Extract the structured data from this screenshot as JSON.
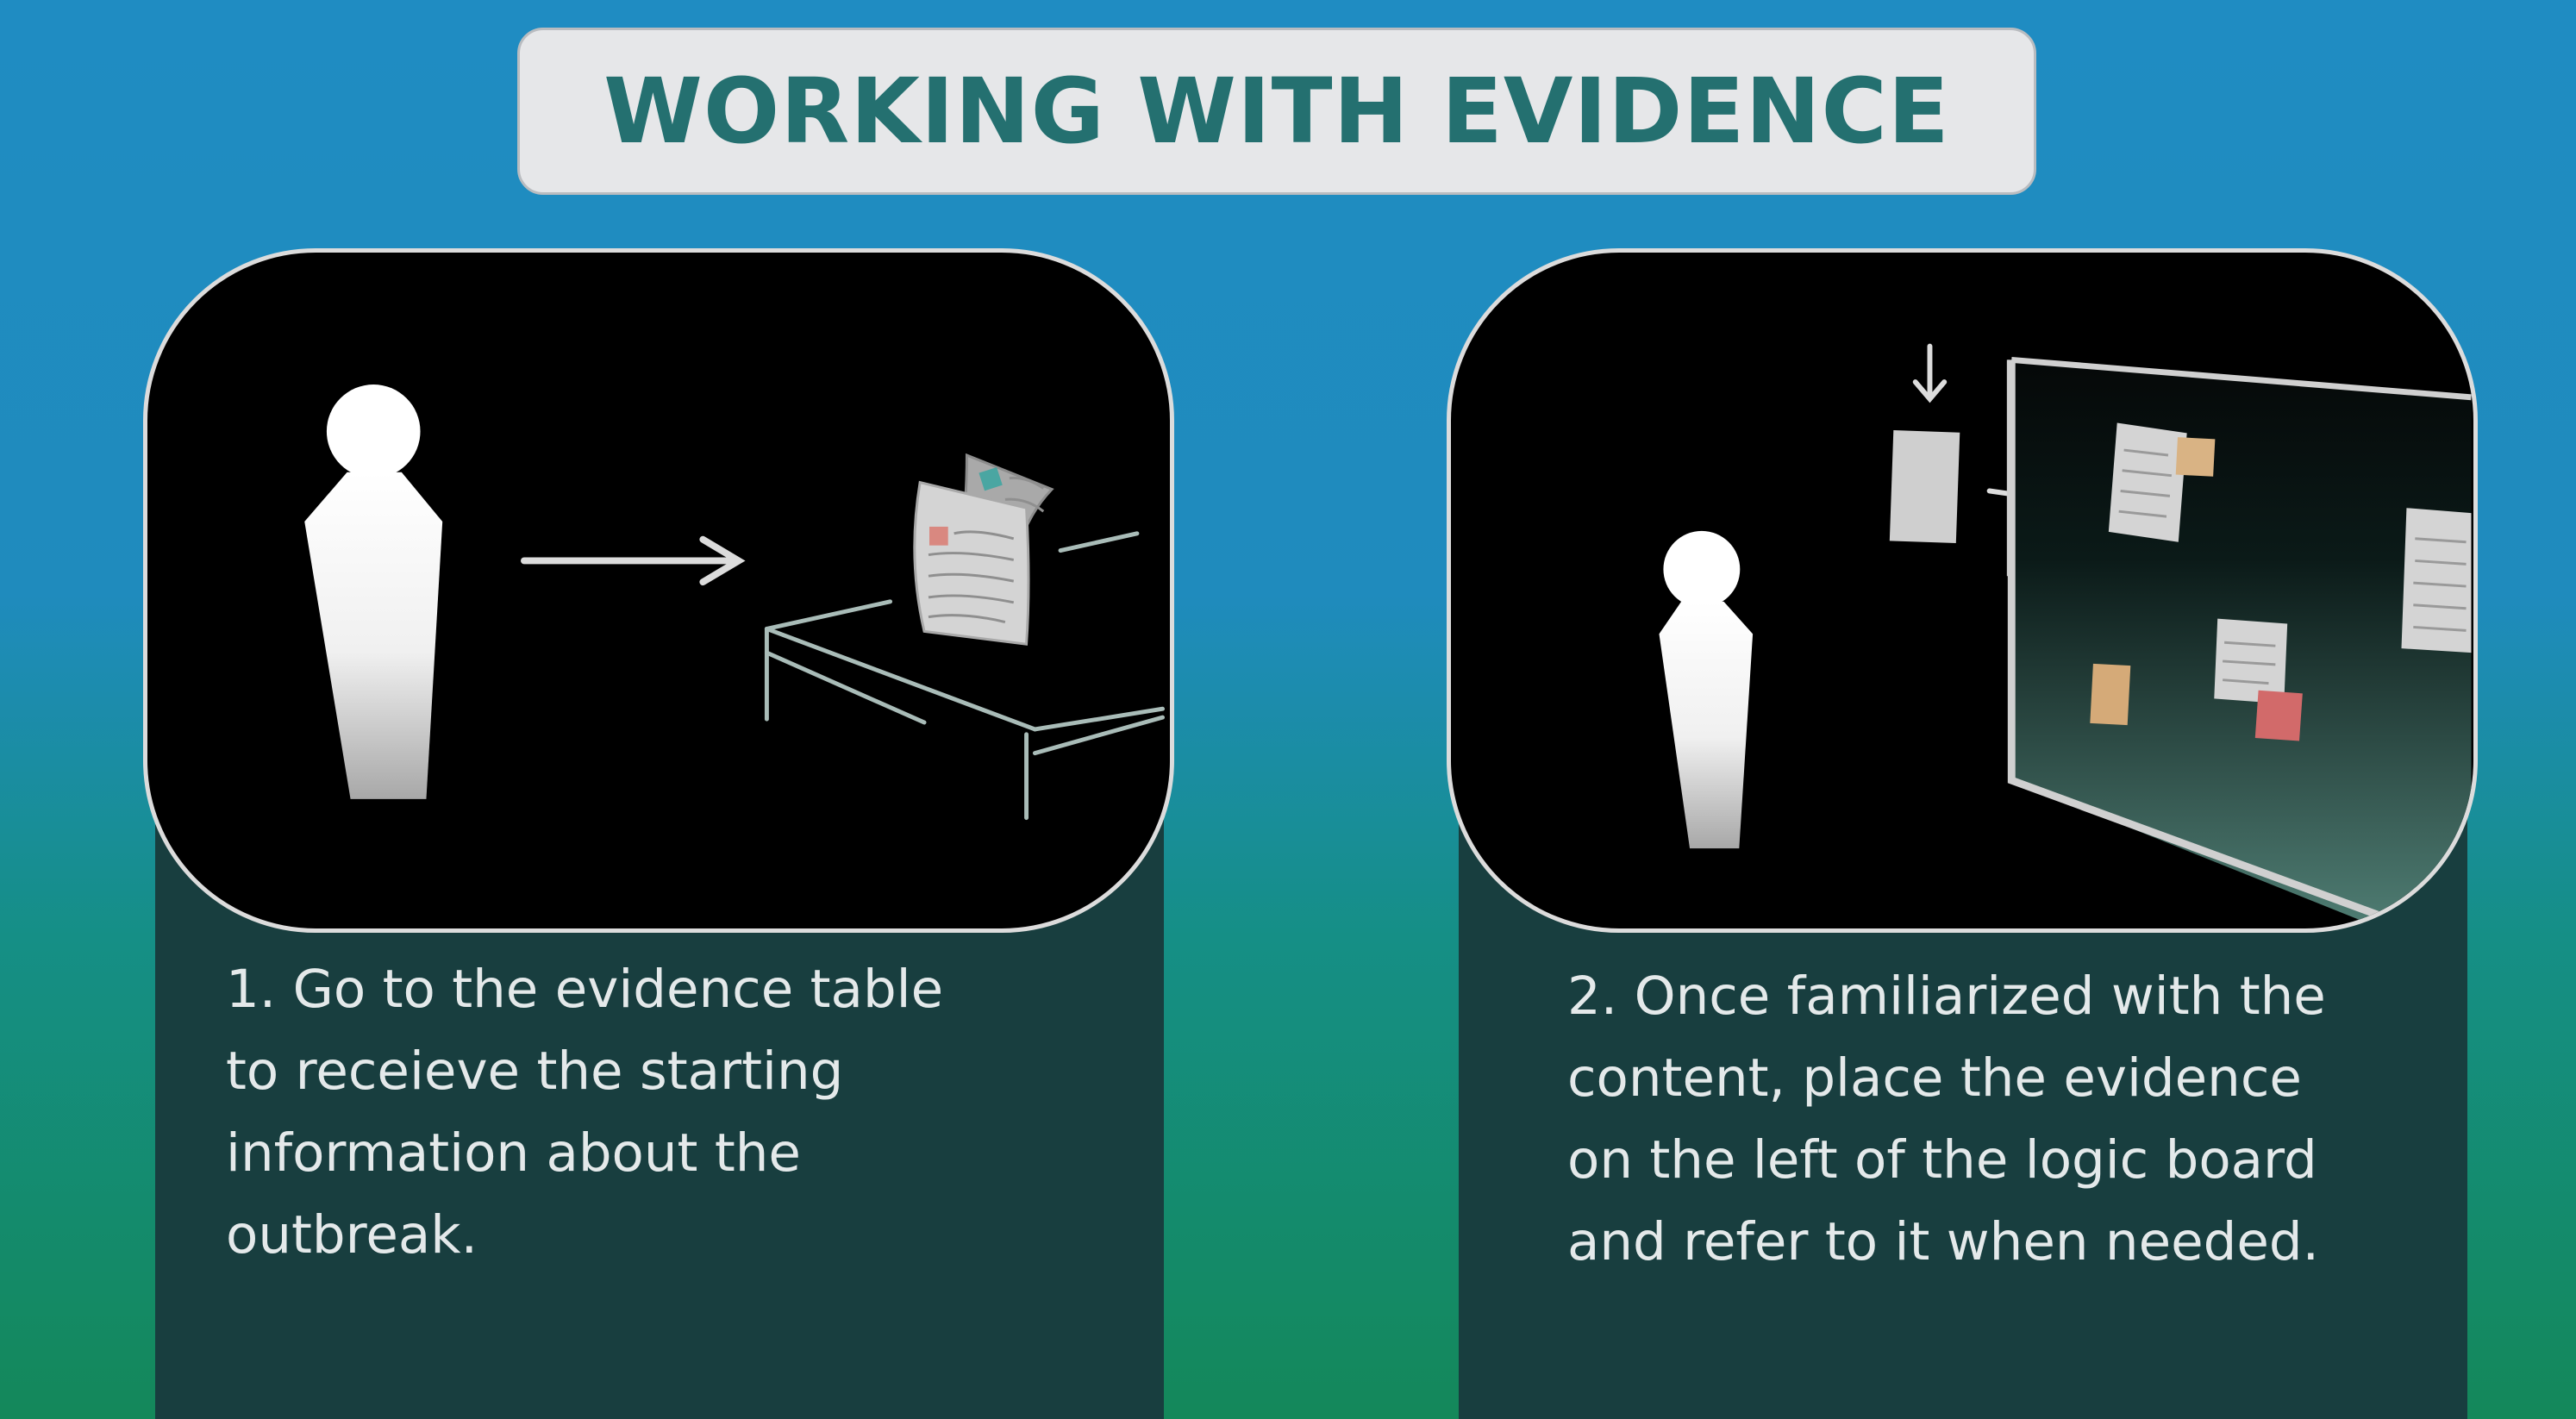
{
  "title": "WORKING WITH EVIDENCE",
  "steps": [
    {
      "text": "1. Go to the evidence table\nto receieve the starting\ninformation about the\noutbreak."
    },
    {
      "text": "2. Once familiarized with the\ncontent, place the evidence\non the left of the logic board\nand refer to it when needed."
    }
  ],
  "colors": {
    "title_text": "#247070",
    "banner_bg": "#e6e7e9",
    "panel_bg": "#183e3f",
    "bg_top": "#1f8cc2",
    "bg_bottom": "#14885a"
  }
}
